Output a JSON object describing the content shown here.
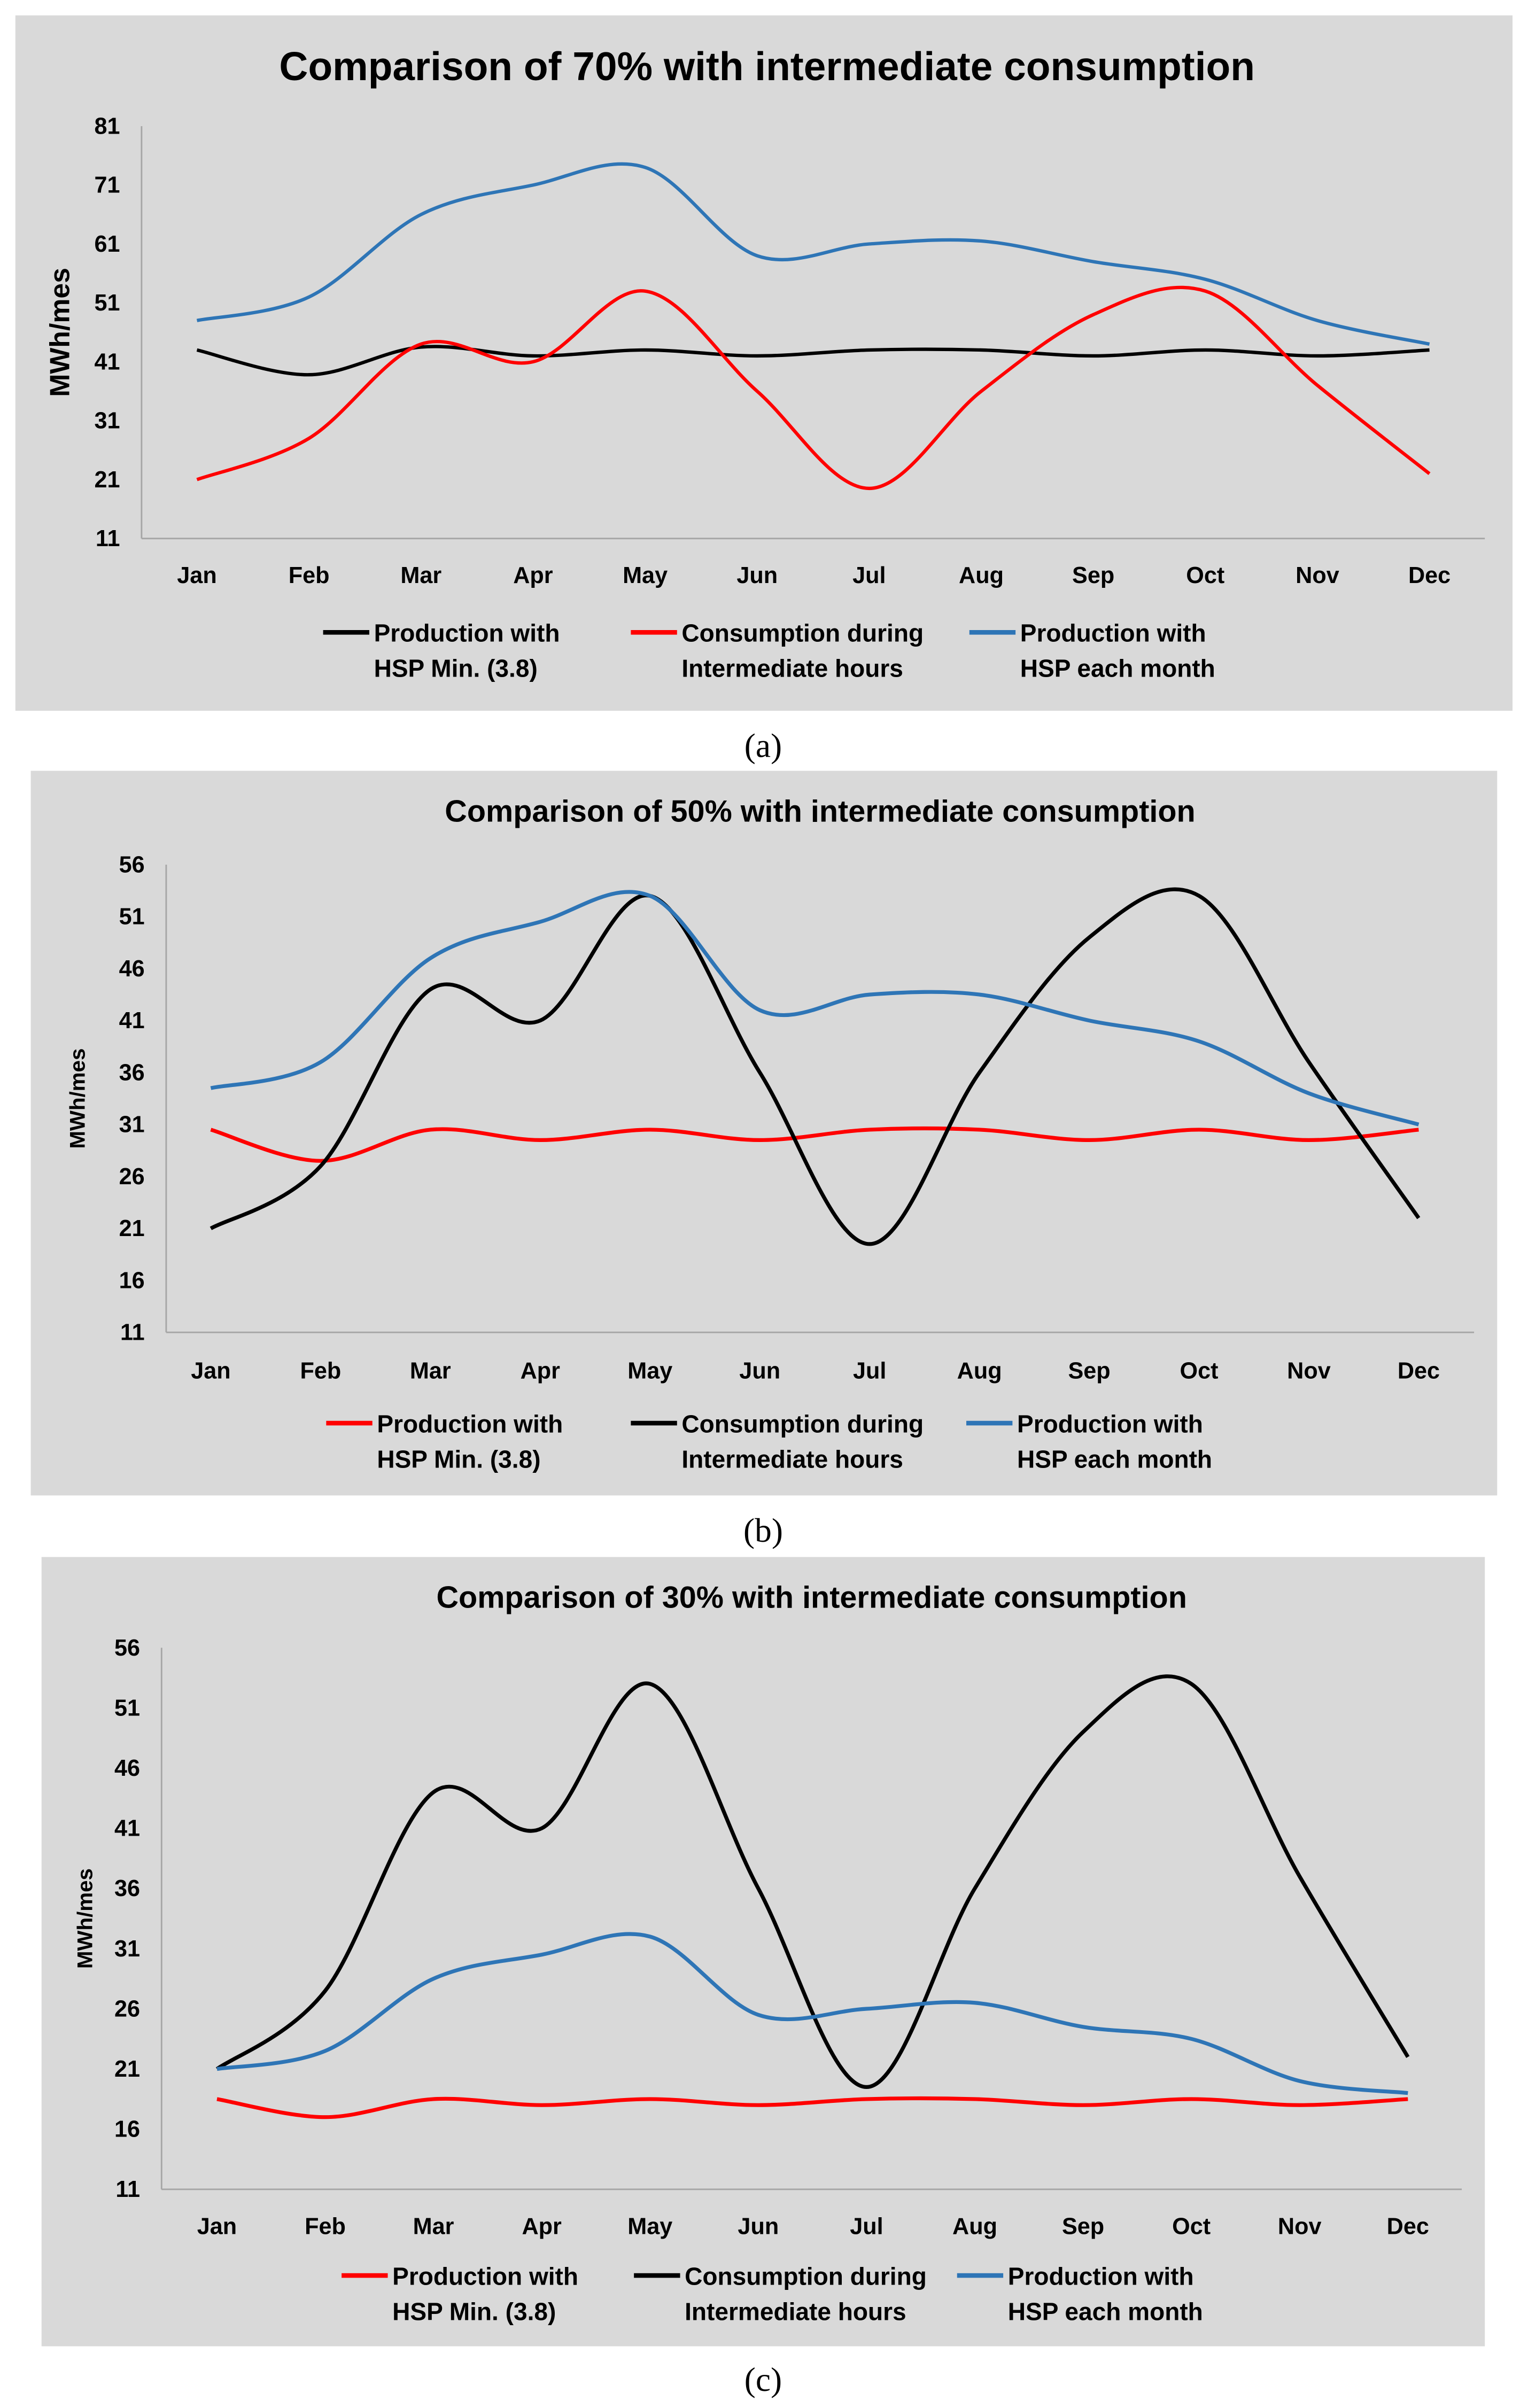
{
  "chart_data": [
    {
      "type": "line",
      "label": "(a)",
      "title": "Comparison of 70% with intermediate consumption",
      "ylabel": "MWh/mes",
      "xlabel": "",
      "ylim": [
        11,
        81
      ],
      "yticks": [
        11,
        21,
        31,
        41,
        51,
        61,
        71,
        81
      ],
      "categories": [
        "Jan",
        "Feb",
        "Mar",
        "Apr",
        "May",
        "Jun",
        "Jul",
        "Aug",
        "Sep",
        "Oct",
        "Nov",
        "Dec"
      ],
      "legend_position": "bottom",
      "grid": false,
      "series": [
        {
          "name": "Production with HSP Min. (3.8)",
          "line1": "Production with",
          "line2": "HSP Min. (3.8)",
          "color": "#000000",
          "values": [
            43,
            38.8,
            43.5,
            42,
            43,
            42,
            43,
            43,
            42,
            43,
            42,
            43
          ]
        },
        {
          "name": "Consumption during Intermediate hours",
          "line1": "Consumption during",
          "line2": "Intermediate hours",
          "color": "#ff0000",
          "values": [
            21,
            28,
            44,
            41,
            53,
            36,
            19.5,
            36,
            49,
            53,
            37,
            22
          ]
        },
        {
          "name": "Production with HSP each month",
          "line1": "Production with",
          "line2": "HSP each month",
          "color": "#2e75b6",
          "values": [
            48,
            52,
            66,
            71,
            74,
            59,
            61,
            61.5,
            58,
            55,
            48,
            44
          ]
        }
      ]
    },
    {
      "type": "line",
      "label": "(b)",
      "title": "Comparison of 50% with intermediate consumption",
      "ylabel": "MWh/mes",
      "xlabel": "",
      "ylim": [
        11,
        56
      ],
      "yticks": [
        11,
        16,
        21,
        26,
        31,
        36,
        41,
        46,
        51,
        56
      ],
      "categories": [
        "Jan",
        "Feb",
        "Mar",
        "Apr",
        "May",
        "Jun",
        "Jul",
        "Aug",
        "Sep",
        "Oct",
        "Nov",
        "Dec"
      ],
      "legend_position": "bottom",
      "grid": false,
      "series": [
        {
          "name": "Production with HSP Min. (3.8)",
          "line1": "Production with",
          "line2": "HSP Min. (3.8)",
          "color": "#ff0000",
          "values": [
            30.5,
            27.5,
            30.5,
            29.5,
            30.5,
            29.5,
            30.5,
            30.5,
            29.5,
            30.5,
            29.5,
            30.5
          ]
        },
        {
          "name": "Consumption during Intermediate hours",
          "line1": "Consumption during",
          "line2": "Intermediate hours",
          "color": "#000000",
          "values": [
            21,
            27,
            44,
            41,
            53,
            36,
            19.5,
            36,
            49,
            53,
            37,
            22
          ]
        },
        {
          "name": "Production with HSP each month",
          "line1": "Production with",
          "line2": "HSP each month",
          "color": "#2e75b6",
          "values": [
            34.5,
            37,
            47,
            50.5,
            53,
            42,
            43.5,
            43.5,
            41,
            39,
            34,
            31
          ]
        }
      ]
    },
    {
      "type": "line",
      "label": "(c)",
      "title": "Comparison of 30% with intermediate consumption",
      "ylabel": "MWh/mes",
      "xlabel": "",
      "ylim": [
        11,
        56
      ],
      "yticks": [
        11,
        16,
        21,
        26,
        31,
        36,
        41,
        46,
        51,
        56
      ],
      "categories": [
        "Jan",
        "Feb",
        "Mar",
        "Apr",
        "May",
        "Jun",
        "Jul",
        "Aug",
        "Sep",
        "Oct",
        "Nov",
        "Dec"
      ],
      "legend_position": "bottom",
      "grid": false,
      "series": [
        {
          "name": "Production with HSP Min. (3.8)",
          "line1": "Production with",
          "line2": "HSP Min. (3.8)",
          "color": "#ff0000",
          "values": [
            18.5,
            17,
            18.5,
            18,
            18.5,
            18,
            18.5,
            18.5,
            18,
            18.5,
            18,
            18.5
          ]
        },
        {
          "name": "Consumption during Intermediate hours",
          "line1": "Consumption during",
          "line2": "Intermediate hours",
          "color": "#000000",
          "values": [
            21,
            27.5,
            44,
            41,
            53,
            36,
            19.5,
            36,
            49,
            53,
            37,
            22
          ]
        },
        {
          "name": "Production with HSP each month",
          "line1": "Production with",
          "line2": "HSP each month",
          "color": "#2e75b6",
          "values": [
            21,
            22.5,
            28.5,
            30.5,
            32,
            25.5,
            26,
            26.5,
            24.5,
            23.5,
            20,
            19
          ]
        }
      ]
    }
  ]
}
